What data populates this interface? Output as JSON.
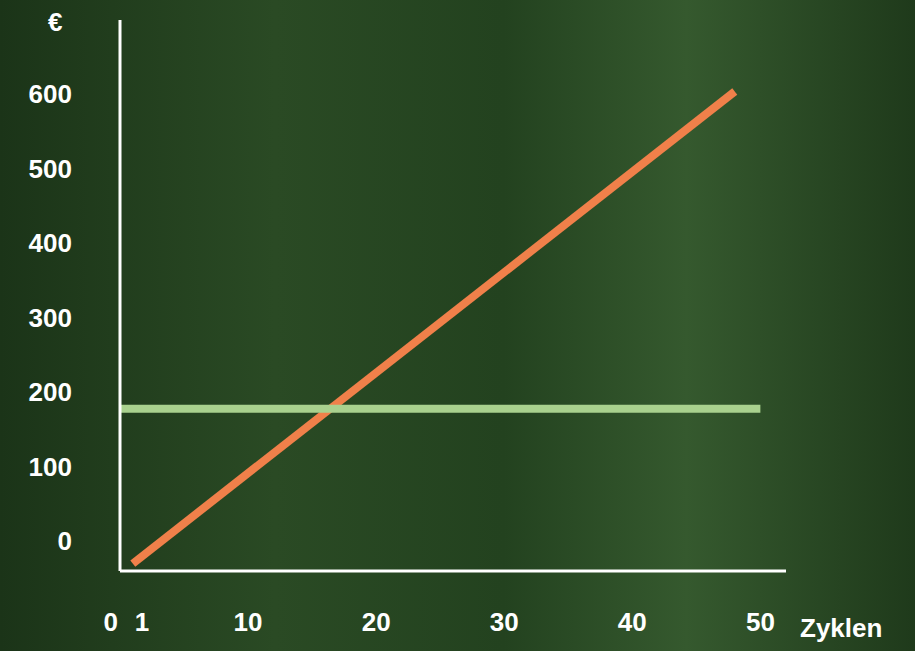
{
  "chart_data": {
    "type": "line",
    "y_label": "€",
    "x_label": "Zyklen",
    "xlim": [
      0,
      52
    ],
    "xticks": [
      0,
      1,
      10,
      20,
      30,
      40,
      50
    ],
    "ylim": [
      -40,
      700
    ],
    "yticks": [
      0,
      100,
      200,
      300,
      400,
      500,
      600
    ],
    "grid": false,
    "series": [
      {
        "color": "#f0804a",
        "x": [
          1,
          48
        ],
        "values": [
          -30,
          604
        ]
      },
      {
        "color": "#a9d18e",
        "x": [
          0,
          50
        ],
        "values": [
          178,
          178
        ]
      }
    ]
  }
}
